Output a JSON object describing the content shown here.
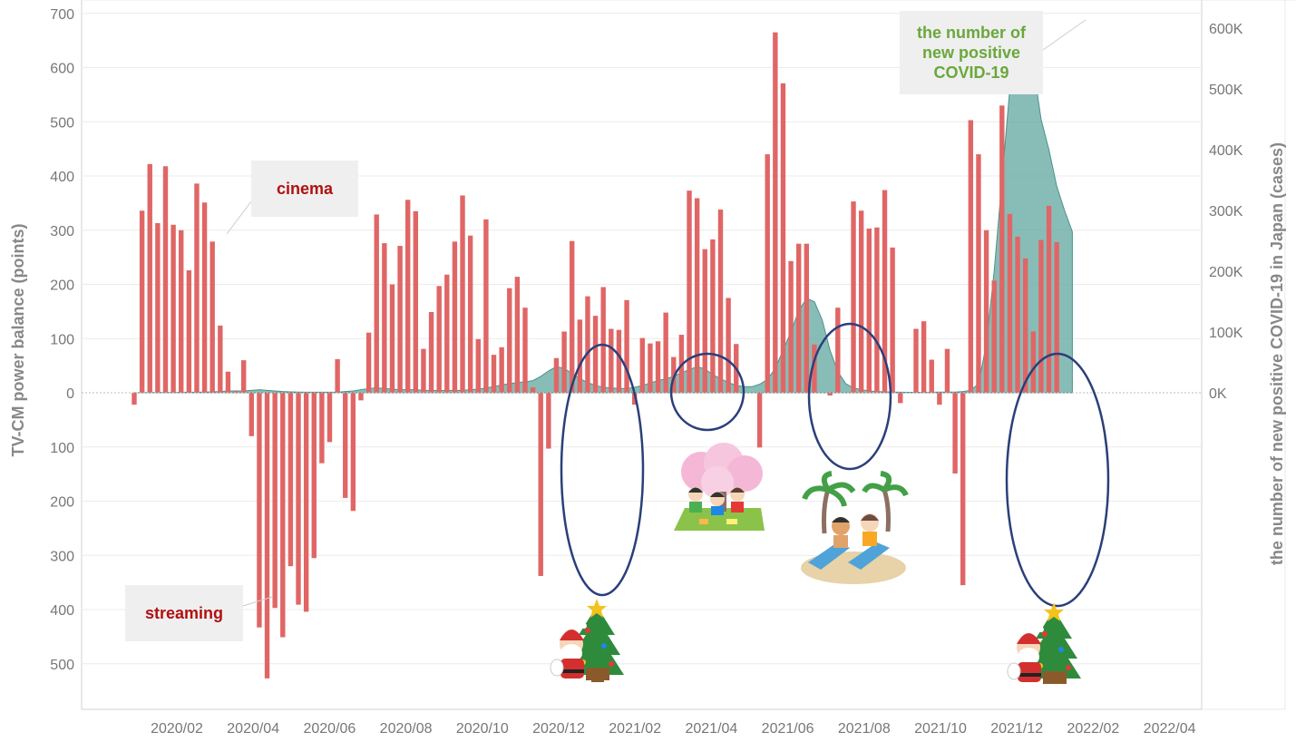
{
  "chart_data": {
    "type": "bar",
    "title": "",
    "ylabel": "TV-CM power balance (points)",
    "y2label": "the number of new positive COVID-19 in Japan (cases)",
    "ylim": [
      -580,
      700
    ],
    "y2lim": [
      0,
      600000
    ],
    "y_ticks": [
      {
        "v": 700,
        "label": "700"
      },
      {
        "v": 600,
        "label": "600"
      },
      {
        "v": 500,
        "label": "500"
      },
      {
        "v": 400,
        "label": "400"
      },
      {
        "v": 300,
        "label": "300"
      },
      {
        "v": 200,
        "label": "200"
      },
      {
        "v": 100,
        "label": "100"
      },
      {
        "v": 0,
        "label": "0"
      },
      {
        "v": -100,
        "label": "100"
      },
      {
        "v": -200,
        "label": "200"
      },
      {
        "v": -300,
        "label": "300"
      },
      {
        "v": -400,
        "label": "400"
      },
      {
        "v": -500,
        "label": "500"
      }
    ],
    "y2_ticks": [
      {
        "v": 600000,
        "label": "600K"
      },
      {
        "v": 500000,
        "label": "500K"
      },
      {
        "v": 400000,
        "label": "400K"
      },
      {
        "v": 300000,
        "label": "300K"
      },
      {
        "v": 200000,
        "label": "200K"
      },
      {
        "v": 100000,
        "label": "100K"
      },
      {
        "v": 0,
        "label": "0K"
      }
    ],
    "x_ticks": [
      "2020/02",
      "2020/04",
      "2020/06",
      "2020/08",
      "2020/10",
      "2020/12",
      "2021/02",
      "2021/04",
      "2021/06",
      "2021/08",
      "2021/10",
      "2021/12",
      "2022/02",
      "2022/04"
    ],
    "grid": true,
    "series": [
      {
        "name": "TV-CM power balance",
        "color": "#e06666",
        "type": "bar",
        "note_positive": "cinema",
        "note_negative": "streaming",
        "values": [
          -22,
          336,
          422,
          313,
          418,
          310,
          300,
          226,
          386,
          351,
          279,
          124,
          39,
          3,
          60,
          -80,
          -433,
          -527,
          -397,
          -451,
          -320,
          -391,
          -404,
          -305,
          -130,
          -91,
          62,
          -194,
          -218,
          -14,
          111,
          329,
          276,
          200,
          271,
          356,
          335,
          81,
          149,
          197,
          218,
          279,
          364,
          290,
          99,
          320,
          70,
          84,
          193,
          214,
          157,
          10,
          -338,
          -103,
          64,
          113,
          280,
          135,
          178,
          142,
          195,
          118,
          116,
          171,
          -22,
          101,
          91,
          95,
          148,
          66,
          107,
          373,
          359,
          265,
          283,
          338,
          175,
          90,
          0,
          0,
          -101,
          440,
          665,
          571,
          243,
          275,
          275,
          89,
          0,
          -5,
          157,
          0,
          353,
          336,
          303,
          305,
          374,
          268,
          -19,
          0,
          118,
          132,
          61,
          -22,
          81,
          -149,
          -355,
          503,
          440,
          300,
          207,
          530,
          330,
          288,
          248,
          113,
          282,
          345,
          278
        ]
      },
      {
        "name": "the number of new positive COVID-19",
        "color": "#5aa39b",
        "type": "area",
        "values": [
          0,
          200,
          300,
          400,
          500,
          600,
          800,
          900,
          1000,
          1200,
          1500,
          2000,
          3000,
          3000,
          3000,
          4000,
          5000,
          4000,
          3000,
          2000,
          1500,
          1200,
          1000,
          1000,
          1000,
          1000,
          1000,
          2000,
          3000,
          5000,
          7000,
          8000,
          7000,
          6000,
          5000,
          5000,
          5000,
          4000,
          4000,
          4000,
          4000,
          4000,
          4000,
          5000,
          6000,
          8000,
          10000,
          13000,
          15000,
          17000,
          18000,
          20000,
          27000,
          36000,
          43000,
          40000,
          32000,
          23000,
          17000,
          12000,
          9000,
          8000,
          7000,
          7000,
          9000,
          12000,
          16000,
          20000,
          23000,
          27000,
          33000,
          38000,
          43000,
          39000,
          30000,
          23000,
          17000,
          12000,
          10000,
          10000,
          14000,
          22000,
          40000,
          70000,
          100000,
          135000,
          155000,
          150000,
          120000,
          70000,
          35000,
          15000,
          8000,
          5000,
          3000,
          2000,
          1500,
          1200,
          1000,
          800,
          700,
          800,
          1000,
          1200,
          1200,
          1200,
          2000,
          4000,
          15000,
          80000,
          200000,
          350000,
          500000,
          615000,
          540000,
          538000,
          450000,
          400000,
          340000,
          300000,
          265000
        ]
      }
    ]
  },
  "callouts": {
    "cinema": "cinema",
    "streaming": "streaming",
    "covid": "the number of new positive COVID-19"
  },
  "illustrations": [
    {
      "icon": "christmas-santa-tree",
      "label": ""
    },
    {
      "icon": "cherry-blossom-picnic",
      "label": ""
    },
    {
      "icon": "summer-beach",
      "label": ""
    },
    {
      "icon": "christmas-santa-tree",
      "label": ""
    }
  ]
}
